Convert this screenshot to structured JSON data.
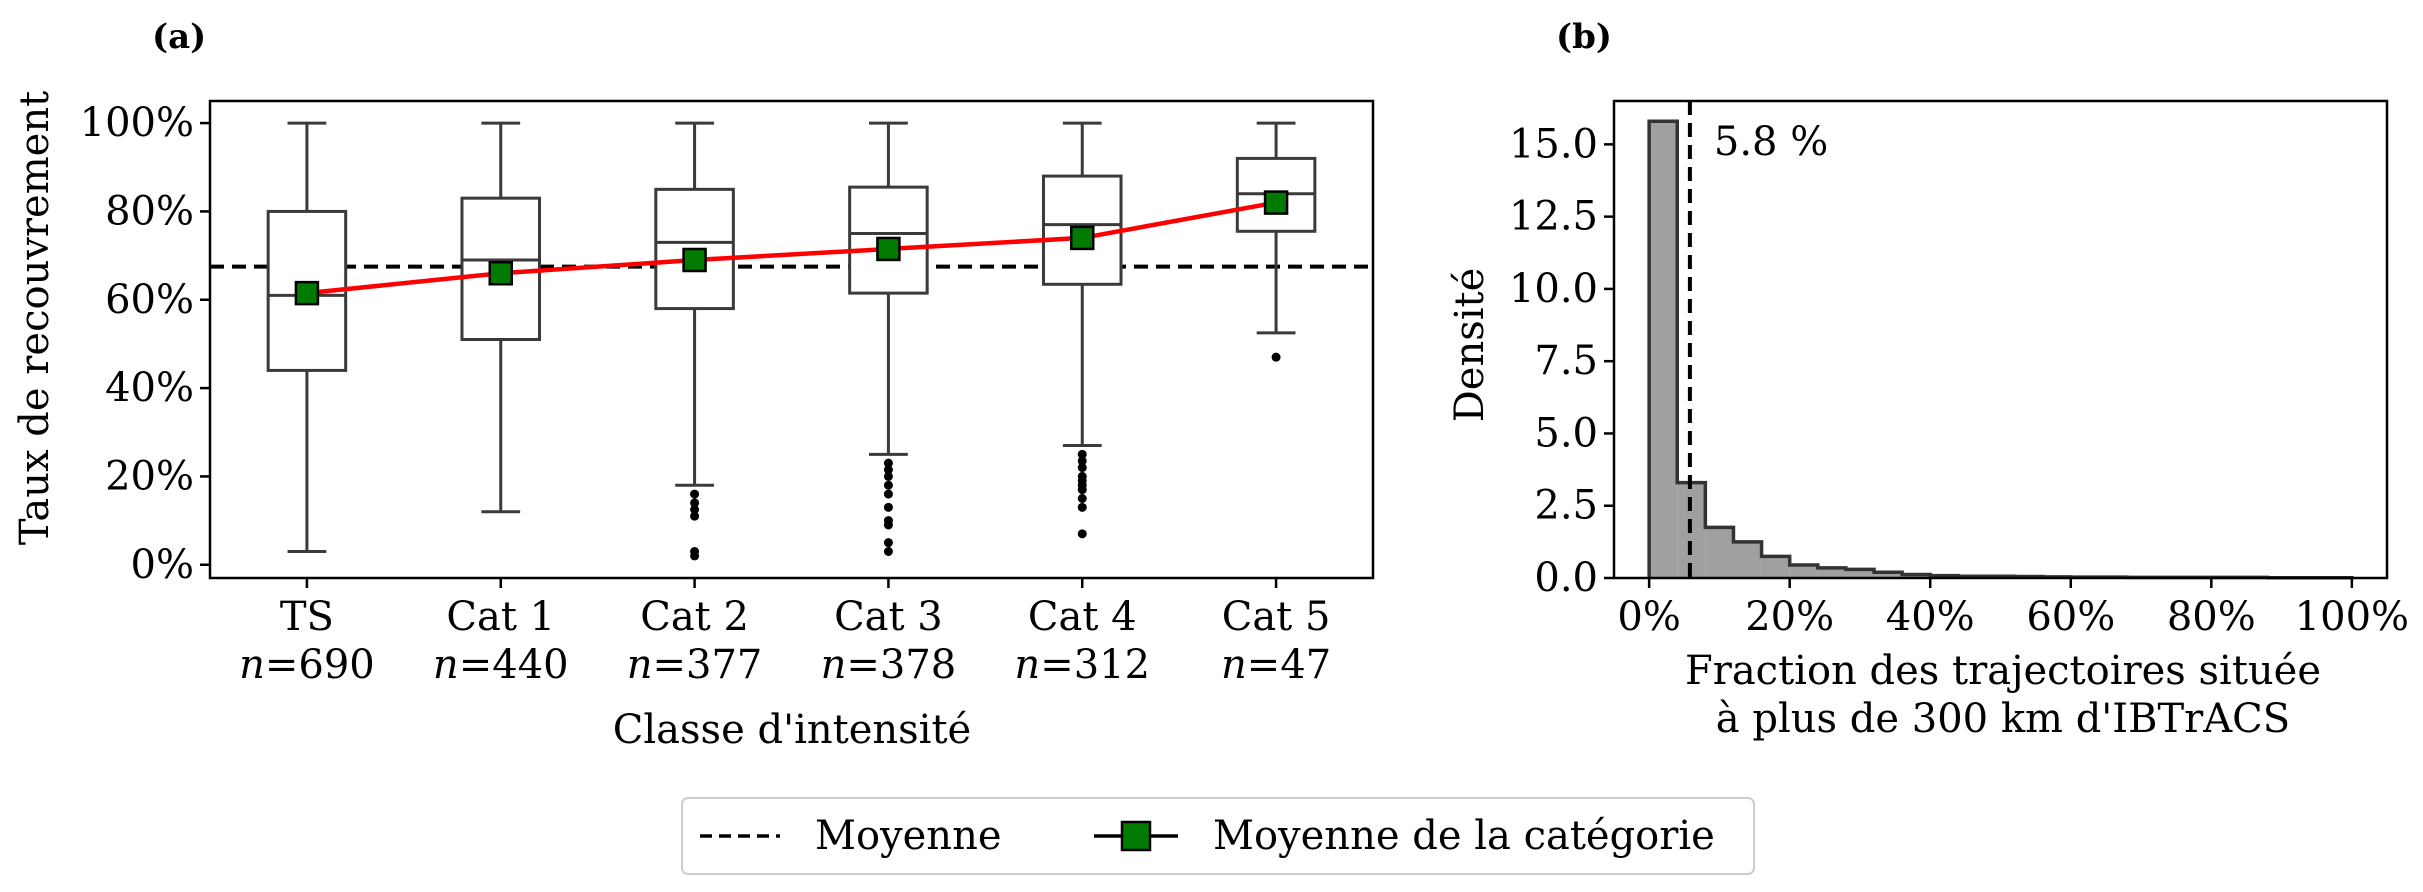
{
  "chart_data": [
    {
      "type": "box",
      "panel_label": "(a)",
      "xlabel": "Classe d'intensité",
      "ylabel": "Taux de recouvrement",
      "ylim": [
        -3,
        105
      ],
      "yticks": [
        0,
        20,
        40,
        60,
        80,
        100
      ],
      "ytick_labels": [
        "0%",
        "20%",
        "40%",
        "60%",
        "80%",
        "100%"
      ],
      "categories": [
        "TS",
        "Cat 1",
        "Cat 2",
        "Cat 3",
        "Cat 4",
        "Cat 5"
      ],
      "counts": [
        "n=690",
        "n=440",
        "n=377",
        "n=378",
        "n=312",
        "n=47"
      ],
      "boxes": [
        {
          "whislo": 3,
          "q1": 44,
          "median": 61,
          "q3": 80,
          "whishi": 100,
          "fliers": []
        },
        {
          "whislo": 12,
          "q1": 51,
          "median": 69,
          "q3": 83,
          "whishi": 100,
          "fliers": []
        },
        {
          "whislo": 18,
          "q1": 58,
          "median": 73,
          "q3": 85,
          "whishi": 100,
          "fliers": [
            16,
            14,
            12.5,
            11,
            3,
            2
          ]
        },
        {
          "whislo": 25,
          "q1": 61.5,
          "median": 75,
          "q3": 85.5,
          "whishi": 100,
          "fliers": [
            23,
            21.5,
            20,
            18,
            16,
            13,
            10,
            9,
            5,
            3
          ]
        },
        {
          "whislo": 27,
          "q1": 63.5,
          "median": 77,
          "q3": 88,
          "whishi": 100,
          "fliers": [
            25,
            23.5,
            22,
            20,
            19,
            18,
            17,
            15,
            13,
            7
          ]
        },
        {
          "whislo": 52.5,
          "q1": 75.5,
          "median": 84,
          "q3": 92,
          "whishi": 100,
          "fliers": [
            47
          ]
        }
      ],
      "category_means": [
        61.5,
        66,
        69,
        71.5,
        74,
        82
      ],
      "overall_mean": 67.5,
      "grid": false
    },
    {
      "type": "histogram",
      "panel_label": "(b)",
      "xlabel_line1": "Fraction des trajectoires située",
      "xlabel_line2": "à plus de 300 km d'IBTrACS",
      "ylabel": "Densité",
      "xlim": [
        -5,
        105
      ],
      "ylim": [
        0,
        16.5
      ],
      "xticks": [
        0,
        20,
        40,
        60,
        80,
        100
      ],
      "xtick_labels": [
        "0%",
        "20%",
        "40%",
        "60%",
        "80%",
        "100%"
      ],
      "yticks": [
        0,
        2.5,
        5,
        7.5,
        10,
        12.5,
        15
      ],
      "ytick_labels": [
        "0.0",
        "2.5",
        "5.0",
        "7.5",
        "10.0",
        "12.5",
        "15.0"
      ],
      "bin_edges": [
        0,
        4,
        8,
        12,
        16,
        20,
        24,
        28,
        32,
        36,
        40,
        44,
        48,
        52,
        56,
        60,
        64,
        68,
        72,
        76,
        80,
        84,
        88,
        92,
        96,
        100
      ],
      "densities": [
        15.8,
        3.3,
        1.75,
        1.25,
        0.75,
        0.45,
        0.35,
        0.3,
        0.2,
        0.12,
        0.08,
        0.06,
        0.06,
        0.05,
        0.04,
        0.03,
        0.03,
        0.02,
        0.02,
        0.02,
        0.02,
        0.02,
        0.01,
        0.01,
        0.01
      ],
      "mean_line_x": 5.8,
      "mean_annotation": "5.8 %",
      "bar_color": "#a0a0a0",
      "grid": false
    }
  ],
  "legend": {
    "mean_label": "Moyenne",
    "category_mean_label": "Moyenne de la catégorie"
  },
  "colors": {
    "box_edge": "#3a3a3a",
    "mean_line": "#ff0000",
    "marker_fill": "#007a00",
    "overall_mean": "#000000"
  }
}
